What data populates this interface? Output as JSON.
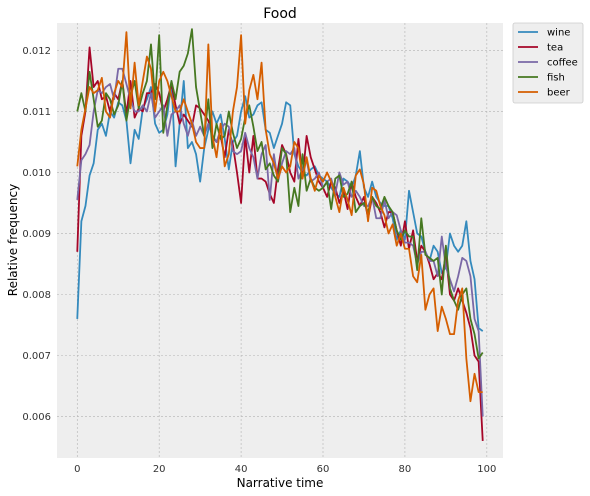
{
  "chart_data": {
    "type": "line",
    "title": "Food",
    "xlabel": "Narrative time",
    "ylabel": "Relative frequency",
    "xlim": [
      -4.95,
      103.95
    ],
    "ylim": [
      0.00532,
      0.01245
    ],
    "xticks": [
      0,
      20,
      40,
      60,
      80,
      100
    ],
    "yticks": [
      0.006,
      0.007,
      0.008,
      0.009,
      0.01,
      0.011,
      0.012
    ],
    "ytick_labels": [
      "0.006",
      "0.007",
      "0.008",
      "0.009",
      "0.010",
      "0.011",
      "0.012"
    ],
    "grid": true,
    "legend_position": "outside-top-right",
    "x": [
      0,
      1,
      2,
      3,
      4,
      5,
      6,
      7,
      8,
      9,
      10,
      11,
      12,
      13,
      14,
      15,
      16,
      17,
      18,
      19,
      20,
      21,
      22,
      23,
      24,
      25,
      26,
      27,
      28,
      29,
      30,
      31,
      32,
      33,
      34,
      35,
      36,
      37,
      38,
      39,
      40,
      41,
      42,
      43,
      44,
      45,
      46,
      47,
      48,
      49,
      50,
      51,
      52,
      53,
      54,
      55,
      56,
      57,
      58,
      59,
      60,
      61,
      62,
      63,
      64,
      65,
      66,
      67,
      68,
      69,
      70,
      71,
      72,
      73,
      74,
      75,
      76,
      77,
      78,
      79,
      80,
      81,
      82,
      83,
      84,
      85,
      86,
      87,
      88,
      89,
      90,
      91,
      92,
      93,
      94,
      95,
      96,
      97,
      98,
      99
    ],
    "series": [
      {
        "name": "wine",
        "color": "#348abd",
        "values": [
          0.0076,
          0.0092,
          0.00945,
          0.00995,
          0.01015,
          0.0107,
          0.0108,
          0.0106,
          0.011,
          0.0109,
          0.01115,
          0.0111,
          0.01085,
          0.01015,
          0.0107,
          0.01055,
          0.01105,
          0.0112,
          0.0114,
          0.0108,
          0.01065,
          0.0107,
          0.01095,
          0.0115,
          0.0101,
          0.0108,
          0.0115,
          0.0104,
          0.0105,
          0.0103,
          0.00985,
          0.0104,
          0.0107,
          0.011,
          0.0108,
          0.01095,
          0.01055,
          0.01005,
          0.0105,
          0.0106,
          0.011,
          0.01125,
          0.0109,
          0.01095,
          0.0111,
          0.01115,
          0.0107,
          0.01065,
          0.0104,
          0.0106,
          0.0108,
          0.01115,
          0.0111,
          0.0103,
          0.0101,
          0.01,
          0.00995,
          0.01005,
          0.0101,
          0.00995,
          0.0099,
          0.00985,
          0.00975,
          0.00965,
          0.0096,
          0.0099,
          0.00985,
          0.00975,
          0.00995,
          0.01035,
          0.00975,
          0.0096,
          0.00985,
          0.0096,
          0.0095,
          0.00945,
          0.00945,
          0.00925,
          0.0089,
          0.00905,
          0.0089,
          0.0097,
          0.00935,
          0.009,
          0.00895,
          0.0087,
          0.00855,
          0.0088,
          0.0087,
          0.00835,
          0.00845,
          0.009,
          0.0088,
          0.0087,
          0.0088,
          0.0092,
          0.00855,
          0.00825,
          0.00745,
          0.0074
        ]
      },
      {
        "name": "tea",
        "color": "#a60628",
        "values": [
          0.0087,
          0.0106,
          0.011,
          0.01205,
          0.0114,
          0.0115,
          0.0112,
          0.01125,
          0.011,
          0.0113,
          0.0112,
          0.0115,
          0.01095,
          0.0115,
          0.0109,
          0.01105,
          0.011,
          0.0113,
          0.0113,
          0.01145,
          0.0113,
          0.011,
          0.0112,
          0.01145,
          0.0111,
          0.0108,
          0.01095,
          0.01085,
          0.01075,
          0.0111,
          0.01105,
          0.01095,
          0.01085,
          0.0106,
          0.0105,
          0.0106,
          0.01025,
          0.0107,
          0.01045,
          0.01,
          0.0095,
          0.0106,
          0.01,
          0.0106,
          0.0099,
          0.0099,
          0.00985,
          0.00965,
          0.0095,
          0.01005,
          0.01045,
          0.0103,
          0.01,
          0.00985,
          0.01055,
          0.0099,
          0.0106,
          0.01025,
          0.01005,
          0.00985,
          0.00975,
          0.0096,
          0.00985,
          0.00975,
          0.0095,
          0.0097,
          0.0094,
          0.00985,
          0.0096,
          0.00945,
          0.0096,
          0.00925,
          0.0096,
          0.0095,
          0.00935,
          0.0091,
          0.00935,
          0.00935,
          0.00905,
          0.0088,
          0.0092,
          0.00875,
          0.00905,
          0.00855,
          0.0088,
          0.0087,
          0.0085,
          0.00825,
          0.00835,
          0.00825,
          0.00865,
          0.008,
          0.0079,
          0.0081,
          0.0079,
          0.0077,
          0.00745,
          0.007,
          0.0069,
          0.0056
        ]
      },
      {
        "name": "coffee",
        "color": "#7a68a6",
        "values": [
          0.00955,
          0.0102,
          0.0103,
          0.01045,
          0.011,
          0.01135,
          0.0113,
          0.0114,
          0.01145,
          0.0112,
          0.0117,
          0.0117,
          0.01145,
          0.0112,
          0.011,
          0.011,
          0.0111,
          0.011,
          0.0113,
          0.0109,
          0.011,
          0.0111,
          0.0106,
          0.01095,
          0.011,
          0.0111,
          0.0108,
          0.0106,
          0.01085,
          0.0106,
          0.01075,
          0.0106,
          0.0108,
          0.0106,
          0.0105,
          0.0107,
          0.0108,
          0.01075,
          0.01035,
          0.0103,
          0.01035,
          0.01065,
          0.0104,
          0.01025,
          0.0099,
          0.0103,
          0.01045,
          0.00955,
          0.0103,
          0.00985,
          0.01015,
          0.01035,
          0.0103,
          0.0104,
          0.0099,
          0.01005,
          0.0102,
          0.00985,
          0.0099,
          0.01,
          0.00975,
          0.00985,
          0.0099,
          0.00965,
          0.01,
          0.0098,
          0.00985,
          0.0096,
          0.0097,
          0.0096,
          0.00945,
          0.00945,
          0.0096,
          0.00925,
          0.00925,
          0.00955,
          0.00925,
          0.00935,
          0.0093,
          0.00905,
          0.00885,
          0.00885,
          0.0088,
          0.0085,
          0.0087,
          0.0087,
          0.00855,
          0.00855,
          0.0083,
          0.00895,
          0.00845,
          0.00825,
          0.00805,
          0.0083,
          0.0086,
          0.00855,
          0.0083,
          0.0076,
          0.0074,
          0.006
        ]
      },
      {
        "name": "fish",
        "color": "#467821",
        "values": [
          0.011,
          0.0113,
          0.011,
          0.01165,
          0.0112,
          0.01075,
          0.01085,
          0.0113,
          0.0112,
          0.01095,
          0.0111,
          0.0115,
          0.01085,
          0.01125,
          0.0115,
          0.01105,
          0.0113,
          0.0115,
          0.0121,
          0.0112,
          0.01225,
          0.01065,
          0.0111,
          0.0115,
          0.0112,
          0.01165,
          0.01175,
          0.01195,
          0.01235,
          0.0114,
          0.011,
          0.0106,
          0.0112,
          0.0104,
          0.0108,
          0.01055,
          0.0106,
          0.011,
          0.01065,
          0.0104,
          0.01055,
          0.0109,
          0.0111,
          0.01075,
          0.01035,
          0.0105,
          0.01005,
          0.01015,
          0.00995,
          0.00985,
          0.0104,
          0.0103,
          0.00935,
          0.00975,
          0.00945,
          0.0103,
          0.0097,
          0.0099,
          0.00975,
          0.0097,
          0.00975,
          0.00985,
          0.0094,
          0.0099,
          0.00995,
          0.0096,
          0.00965,
          0.00985,
          0.00935,
          0.00945,
          0.0095,
          0.00935,
          0.0096,
          0.00945,
          0.0094,
          0.0096,
          0.00945,
          0.00935,
          0.00905,
          0.0089,
          0.00905,
          0.00895,
          0.00895,
          0.0084,
          0.00925,
          0.00865,
          0.0086,
          0.00855,
          0.0086,
          0.008,
          0.0088,
          0.0081,
          0.0079,
          0.00775,
          0.008,
          0.0081,
          0.0076,
          0.00735,
          0.00695,
          0.00705
        ]
      },
      {
        "name": "beer",
        "color": "#d55e00",
        "values": [
          0.0101,
          0.0107,
          0.01105,
          0.0114,
          0.0113,
          0.01135,
          0.01155,
          0.011,
          0.0109,
          0.0113,
          0.0115,
          0.0114,
          0.0123,
          0.01105,
          0.0118,
          0.0111,
          0.0115,
          0.0119,
          0.0117,
          0.011,
          0.0115,
          0.01165,
          0.0115,
          0.01125,
          0.011,
          0.011,
          0.0112,
          0.011,
          0.0108,
          0.0105,
          0.0104,
          0.0104,
          0.0121,
          0.0106,
          0.01025,
          0.0108,
          0.0101,
          0.0103,
          0.011,
          0.0114,
          0.01225,
          0.0108,
          0.01135,
          0.0116,
          0.0112,
          0.0118,
          0.0107,
          0.0103,
          0.01015,
          0.0099,
          0.0101,
          0.01,
          0.0101,
          0.0105,
          0.0104,
          0.0099,
          0.01025,
          0.0099,
          0.0097,
          0.00995,
          0.00985,
          0.01,
          0.00985,
          0.0096,
          0.00935,
          0.00975,
          0.00955,
          0.0093,
          0.00995,
          0.01005,
          0.0098,
          0.0092,
          0.00975,
          0.0097,
          0.00945,
          0.0093,
          0.009,
          0.00915,
          0.0088,
          0.009,
          0.00875,
          0.00875,
          0.0083,
          0.0082,
          0.00865,
          0.00775,
          0.008,
          0.0081,
          0.0074,
          0.0078,
          0.0076,
          0.00735,
          0.00735,
          0.0079,
          0.0081,
          0.00695,
          0.00625,
          0.0067,
          0.0064,
          0.0064
        ]
      }
    ]
  }
}
